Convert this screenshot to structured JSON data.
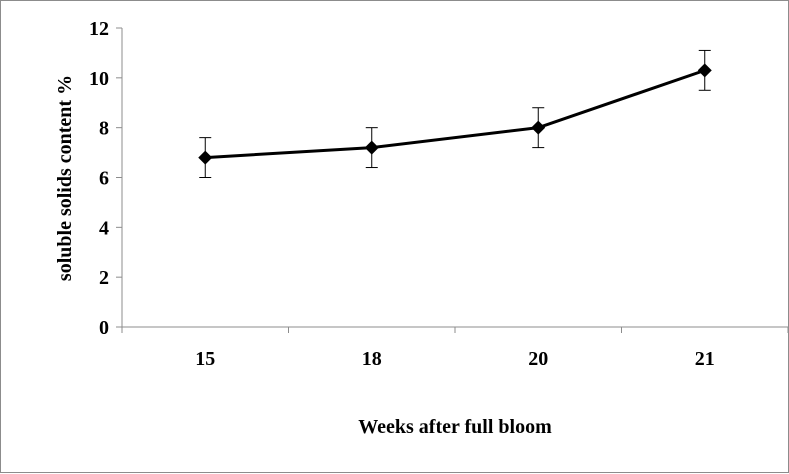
{
  "chart_data": {
    "type": "line",
    "title": "",
    "xlabel": "Weeks after full bloom",
    "ylabel": "soluble solids content %",
    "categories": [
      "15",
      "18",
      "20",
      "21"
    ],
    "series": [
      {
        "values": [
          6.8,
          7.2,
          8.0,
          10.3
        ],
        "error": [
          0.8,
          0.8,
          0.8,
          0.8
        ],
        "color": "#000000",
        "marker": "diamond"
      }
    ],
    "ylim": [
      0,
      12
    ],
    "yticks": [
      0,
      2,
      4,
      6,
      8,
      10,
      12
    ],
    "grid": false,
    "legend": "none"
  }
}
